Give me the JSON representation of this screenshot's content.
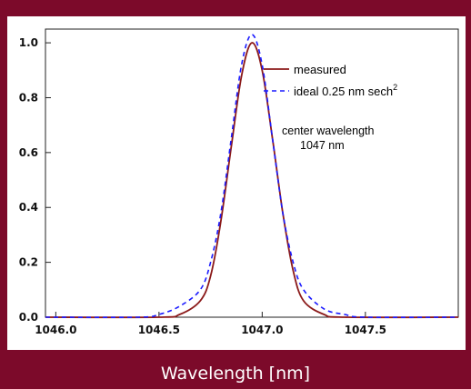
{
  "chart_data": {
    "type": "line",
    "title": "",
    "xlabel": "Wavelength [nm]",
    "ylabel": "",
    "xlim": [
      1045.95,
      1047.95
    ],
    "ylim": [
      0,
      1.05
    ],
    "x_ticks": [
      1046.0,
      1046.5,
      1047.0,
      1047.5
    ],
    "x_tick_labels": [
      "1046.0",
      "1046.5",
      "1047.0",
      "1047.5"
    ],
    "y_ticks": [
      0.0,
      0.2,
      0.4,
      0.6,
      0.8,
      1.0
    ],
    "y_tick_labels": [
      "0.0",
      "0.2",
      "0.4",
      "0.6",
      "0.8",
      "1.0"
    ],
    "grid": false,
    "legend_position": "top-right",
    "annotation": [
      "center wavelength",
      "1047 nm"
    ],
    "series": [
      {
        "name": "measured",
        "color": "#8b1a1a",
        "style": "solid",
        "x": [
          1045.95,
          1046.5,
          1046.6,
          1046.7,
          1046.75,
          1046.8,
          1046.85,
          1046.9,
          1046.95,
          1047.0,
          1047.05,
          1047.1,
          1047.15,
          1047.2,
          1047.3,
          1047.4,
          1047.95
        ],
        "y": [
          0.0,
          0.0,
          0.01,
          0.06,
          0.15,
          0.35,
          0.62,
          0.88,
          1.0,
          0.9,
          0.65,
          0.38,
          0.17,
          0.06,
          0.01,
          0.0,
          0.0
        ]
      },
      {
        "name": "ideal 0.25 nm sech",
        "name_superscript": "2",
        "color": "#1a1aff",
        "style": "dashed",
        "x": [
          1045.95,
          1046.4,
          1046.5,
          1046.6,
          1046.7,
          1046.75,
          1046.8,
          1046.85,
          1046.9,
          1046.95,
          1047.0,
          1047.05,
          1047.1,
          1047.15,
          1047.2,
          1047.3,
          1047.4,
          1047.5,
          1047.95
        ],
        "y": [
          0.0,
          0.0,
          0.01,
          0.04,
          0.1,
          0.2,
          0.38,
          0.65,
          0.92,
          1.03,
          0.92,
          0.65,
          0.38,
          0.2,
          0.1,
          0.03,
          0.01,
          0.0,
          0.0
        ]
      }
    ]
  }
}
